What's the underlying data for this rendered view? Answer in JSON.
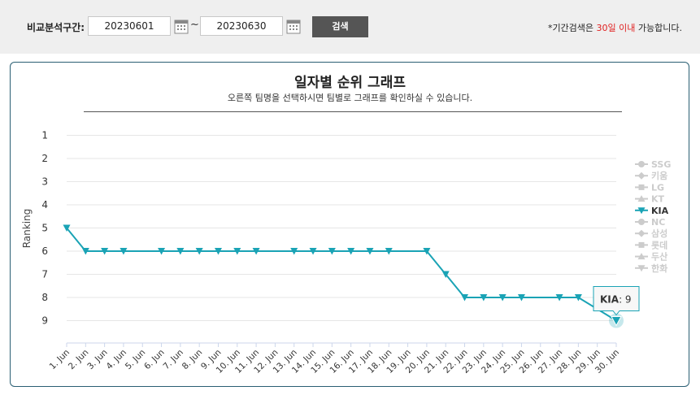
{
  "filter": {
    "label": "비교분석구간:",
    "start_date": "20230601",
    "end_date": "20230630",
    "separator": "~",
    "search_label": "검색",
    "note_prefix": "*기간검색은 ",
    "note_highlight": "30일 이내",
    "note_suffix": " 가능합니다."
  },
  "chart_data": {
    "type": "line",
    "title": "일자별 순위 그래프",
    "subtitle": "오른쪽 팀명을 선택하시면 팀별로 그래프를 확인하실 수 있습니다.",
    "ylabel": "Ranking",
    "y_ticks": [
      1,
      2,
      3,
      4,
      5,
      6,
      7,
      8,
      9
    ],
    "ylim": [
      1,
      10
    ],
    "y_reversed": true,
    "categories": [
      "1. Jun",
      "2. Jun",
      "3. Jun",
      "4. Jun",
      "5. Jun",
      "6. Jun",
      "7. Jun",
      "8. Jun",
      "9. Jun",
      "10. Jun",
      "11. Jun",
      "12. Jun",
      "13. Jun",
      "14. Jun",
      "15. Jun",
      "16. Jun",
      "17. Jun",
      "18. Jun",
      "19. Jun",
      "20. Jun",
      "21. Jun",
      "22. Jun",
      "23. Jun",
      "24. Jun",
      "25. Jun",
      "26. Jun",
      "27. Jun",
      "28. Jun",
      "29. Jun",
      "30. Jun"
    ],
    "series": [
      {
        "name": "KIA",
        "color": "#1aa3b5",
        "values": [
          5,
          6,
          6,
          6,
          null,
          6,
          6,
          6,
          6,
          6,
          6,
          null,
          6,
          6,
          6,
          6,
          6,
          6,
          null,
          6,
          7,
          8,
          8,
          8,
          8,
          null,
          8,
          8,
          null,
          9
        ]
      }
    ],
    "legend": [
      "SSG",
      "키움",
      "LG",
      "KT",
      "KIA",
      "NC",
      "삼성",
      "롯데",
      "두산",
      "한화"
    ],
    "legend_markers": [
      "circle",
      "diamond",
      "square",
      "triangle",
      "triangle-down",
      "circle",
      "diamond",
      "square",
      "triangle",
      "triangle-down"
    ],
    "legend_active": "KIA",
    "legend_position": "right",
    "tooltip": {
      "team": "KIA",
      "value": "9"
    }
  }
}
